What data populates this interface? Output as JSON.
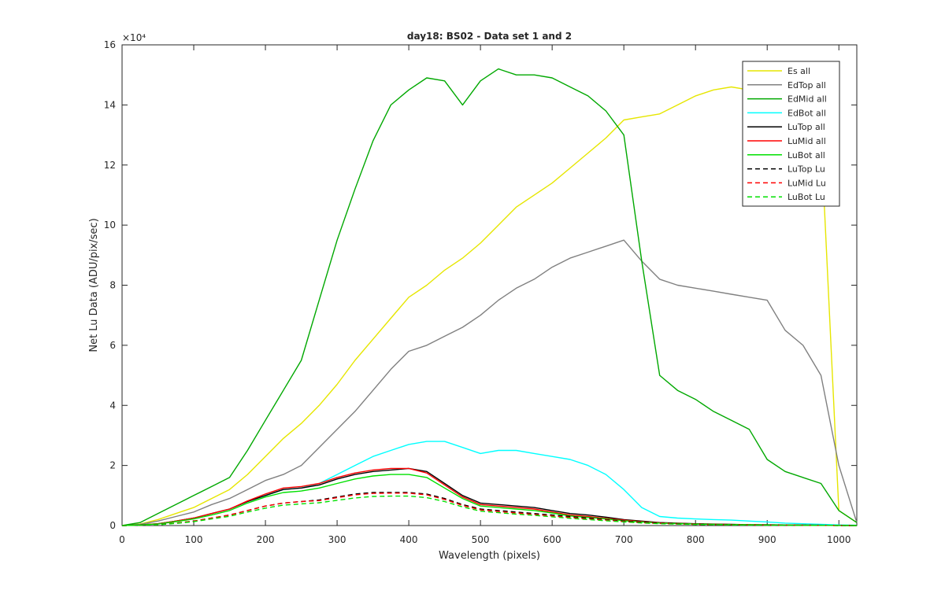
{
  "chart_data": {
    "type": "line",
    "title": "day18: BS02 - Data set 1 and 2",
    "xlabel": "Wavelength (pixels)",
    "ylabel": "Net Lu Data (ADU/pix/sec)",
    "y_exponent_label": "×10⁴",
    "xlim": [
      0,
      1025
    ],
    "ylim": [
      0,
      160000
    ],
    "xticks": [
      0,
      100,
      200,
      300,
      400,
      500,
      600,
      700,
      800,
      900,
      1000
    ],
    "yticks": [
      0,
      20000,
      40000,
      60000,
      80000,
      100000,
      120000,
      140000,
      160000
    ],
    "ytick_labels": [
      "0",
      "2",
      "4",
      "6",
      "8",
      "10",
      "12",
      "14",
      "16"
    ],
    "grid": false,
    "legend_position": "top-right",
    "x": [
      0,
      25,
      50,
      75,
      100,
      125,
      150,
      175,
      200,
      225,
      250,
      275,
      300,
      325,
      350,
      375,
      400,
      425,
      450,
      475,
      500,
      525,
      550,
      575,
      600,
      625,
      650,
      675,
      700,
      725,
      750,
      775,
      800,
      825,
      850,
      875,
      900,
      925,
      950,
      975,
      1000,
      1025
    ],
    "series": [
      {
        "name": "Es  all",
        "color": "#e6e600",
        "dash": "solid",
        "values": [
          0,
          500,
          2000,
          4000,
          6000,
          9000,
          12000,
          17000,
          23000,
          29000,
          34000,
          40000,
          47000,
          55000,
          62000,
          69000,
          76000,
          80000,
          85000,
          89000,
          94000,
          100000,
          106000,
          110000,
          114000,
          119000,
          124000,
          129000,
          135000,
          136000,
          137000,
          140000,
          143000,
          145000,
          146000,
          145000,
          146000,
          144000,
          140000,
          130000,
          5000,
          1000
        ]
      },
      {
        "name": "EdTop  all",
        "color": "#808080",
        "dash": "solid",
        "values": [
          0,
          400,
          1500,
          3000,
          4500,
          7000,
          9000,
          12000,
          15000,
          17000,
          20000,
          26000,
          32000,
          38000,
          45000,
          52000,
          58000,
          60000,
          63000,
          66000,
          70000,
          75000,
          79000,
          82000,
          86000,
          89000,
          91000,
          93000,
          95000,
          88000,
          82000,
          80000,
          79000,
          78000,
          77000,
          76000,
          75000,
          65000,
          60000,
          50000,
          20000,
          1000
        ]
      },
      {
        "name": "EdMid  all",
        "color": "#00a800",
        "dash": "solid",
        "values": [
          0,
          1000,
          4000,
          7000,
          10000,
          13000,
          16000,
          25000,
          35000,
          45000,
          55000,
          75000,
          95000,
          112000,
          128000,
          140000,
          145000,
          149000,
          148000,
          140000,
          148000,
          152000,
          150000,
          150000,
          149000,
          146000,
          143000,
          138000,
          130000,
          88000,
          50000,
          45000,
          42000,
          38000,
          35000,
          32000,
          22000,
          18000,
          16000,
          14000,
          5000,
          1000
        ]
      },
      {
        "name": "EdBot  all",
        "color": "#00ffff",
        "dash": "solid",
        "values": [
          0,
          200,
          600,
          1500,
          2500,
          4000,
          5500,
          8000,
          10000,
          12000,
          12500,
          14000,
          17000,
          20000,
          23000,
          25000,
          27000,
          28000,
          28000,
          26000,
          24000,
          25000,
          25000,
          24000,
          23000,
          22000,
          20000,
          17000,
          12000,
          6000,
          3000,
          2500,
          2200,
          2000,
          1800,
          1500,
          1200,
          800,
          600,
          400,
          200,
          100
        ]
      },
      {
        "name": "LuTop  all",
        "color": "#000000",
        "dash": "solid",
        "values": [
          0,
          200,
          600,
          1500,
          2500,
          4000,
          5500,
          8000,
          10000,
          12000,
          12500,
          13500,
          15500,
          17000,
          18000,
          18500,
          19000,
          18000,
          14000,
          10000,
          7500,
          7000,
          6500,
          6000,
          5000,
          4000,
          3500,
          2800,
          2000,
          1500,
          1000,
          800,
          600,
          500,
          400,
          300,
          250,
          200,
          150,
          100,
          50,
          0
        ]
      },
      {
        "name": "LuMid  all",
        "color": "#ff0000",
        "dash": "solid",
        "values": [
          0,
          200,
          600,
          1500,
          2500,
          4000,
          5500,
          8200,
          10500,
          12500,
          13000,
          14000,
          16000,
          17500,
          18500,
          19000,
          19000,
          17500,
          13500,
          9500,
          7000,
          6500,
          6000,
          5500,
          4500,
          3500,
          3000,
          2400,
          1800,
          1300,
          900,
          700,
          550,
          450,
          350,
          280,
          220,
          180,
          130,
          90,
          40,
          0
        ]
      },
      {
        "name": "LuBot  all",
        "color": "#00e000",
        "dash": "solid",
        "values": [
          0,
          200,
          500,
          1300,
          2200,
          3500,
          5000,
          7500,
          9500,
          11000,
          11500,
          12500,
          14000,
          15500,
          16500,
          17000,
          17000,
          16000,
          12500,
          9000,
          6500,
          6000,
          5500,
          5000,
          4200,
          3200,
          2700,
          2200,
          1600,
          1200,
          800,
          650,
          500,
          400,
          320,
          250,
          200,
          150,
          110,
          80,
          30,
          0
        ]
      },
      {
        "name": "LuTop  Lu",
        "color": "#000000",
        "dash": "dashed",
        "values": [
          0,
          100,
          300,
          800,
          1500,
          2500,
          3500,
          5000,
          6500,
          7500,
          8000,
          8500,
          9500,
          10500,
          11000,
          11000,
          11000,
          10500,
          9000,
          7000,
          5500,
          5000,
          4500,
          4000,
          3500,
          3000,
          2500,
          2000,
          1500,
          1100,
          800,
          600,
          450,
          350,
          280,
          220,
          170,
          130,
          100,
          70,
          30,
          0
        ]
      },
      {
        "name": "LuMid  Lu",
        "color": "#ff0000",
        "dash": "dashed",
        "values": [
          0,
          100,
          300,
          800,
          1500,
          2500,
          3500,
          5000,
          6500,
          7500,
          8000,
          8300,
          9300,
          10200,
          10700,
          10800,
          10800,
          10200,
          8700,
          6700,
          5200,
          4700,
          4200,
          3700,
          3200,
          2700,
          2200,
          1800,
          1300,
          950,
          700,
          520,
          400,
          300,
          240,
          190,
          150,
          110,
          80,
          55,
          25,
          0
        ]
      },
      {
        "name": "LuBot  Lu",
        "color": "#00e000",
        "dash": "dashed",
        "values": [
          0,
          100,
          250,
          700,
          1300,
          2200,
          3100,
          4500,
          5800,
          6800,
          7200,
          7600,
          8400,
          9200,
          9700,
          9800,
          9800,
          9300,
          8000,
          6200,
          4800,
          4300,
          3800,
          3400,
          2900,
          2400,
          2000,
          1600,
          1200,
          850,
          620,
          470,
          360,
          280,
          220,
          170,
          130,
          100,
          70,
          50,
          20,
          0
        ]
      }
    ]
  }
}
